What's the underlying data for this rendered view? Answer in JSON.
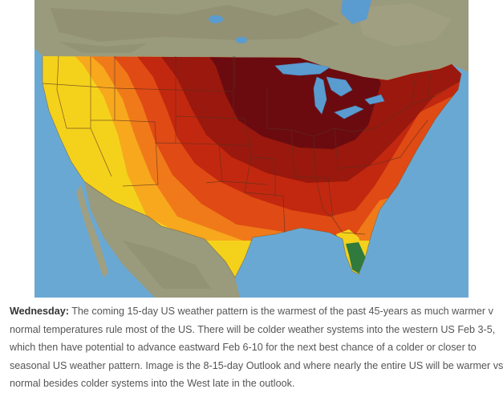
{
  "map": {
    "subject": "US 8-15 day temperature outlook",
    "colors": {
      "ocean": "#6aa8d4",
      "land_neighbors": "#9a9a7c",
      "lakes": "#5a9bd0",
      "below_normal": "#2f7a3c",
      "near_normal": "#f4d21c",
      "above_slight": "#f7a81d",
      "above_moderate": "#f07a1a",
      "above_strong": "#e04a14",
      "above_very_strong": "#c2280f",
      "above_extreme": "#9a180d",
      "above_max": "#6b0b10",
      "border_lines": "#5a3020"
    }
  },
  "caption": {
    "day_label": "Wednesday:",
    "lines": [
      "The coming 15-day US weather pattern is the warmest of the past 45-years as much warmer v",
      "normal temperatures rule most of the US. There will be colder weather systems into the western US Feb 3-5,",
      "which then have potential to advance eastward Feb 6-10 for the next best chance of a colder or closer to",
      "seasonal US weather pattern. Image is the 8-15-day Outlook and where nearly the entire US will be warmer vs",
      "normal besides colder systems into the West late in the outlook."
    ]
  }
}
